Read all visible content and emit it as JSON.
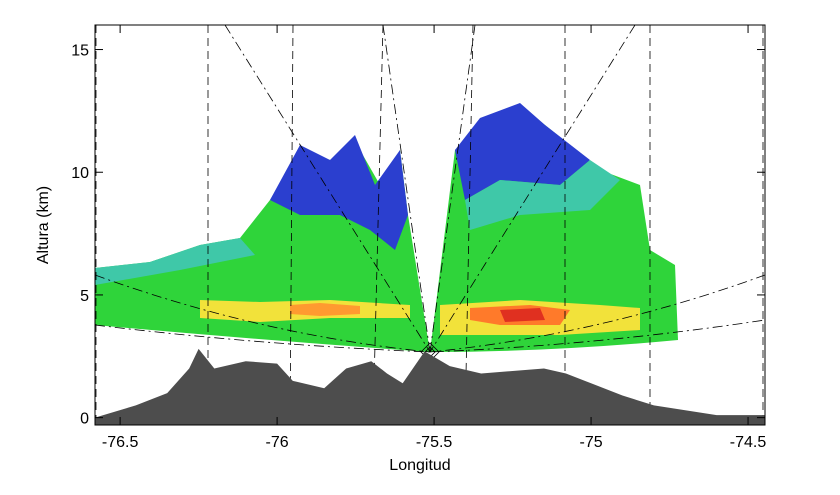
{
  "chart_data": {
    "type": "area",
    "xlabel": "Longitud",
    "ylabel": "Altura (km)",
    "xlim": [
      -76.58,
      -74.446
    ],
    "ylim": [
      -0.3,
      16
    ],
    "xticks": [
      -76.5,
      -76.0,
      -75.5,
      -75.0,
      -74.5
    ],
    "yticks": [
      0,
      5,
      10,
      15
    ],
    "series": [
      {
        "color": "#4d4d4d",
        "x": [
          -76.58,
          -76.45,
          -76.35,
          -76.28,
          -76.25,
          -76.2,
          -76.1,
          -76.0,
          -75.95,
          -75.85,
          -75.78,
          -75.7,
          -75.65,
          -75.6,
          -75.53,
          -75.45,
          -75.35,
          -75.25,
          -75.15,
          -75.08,
          -75.0,
          -74.9,
          -74.8,
          -74.7,
          -74.6,
          -74.446
        ],
        "values": [
          0,
          0.5,
          1.0,
          2.0,
          2.8,
          2.0,
          2.3,
          2.2,
          1.5,
          1.2,
          2.0,
          2.3,
          1.8,
          1.4,
          2.7,
          2.1,
          1.8,
          1.9,
          2.0,
          1.8,
          1.4,
          0.9,
          0.5,
          0.3,
          0.1,
          0.1
        ]
      }
    ]
  }
}
